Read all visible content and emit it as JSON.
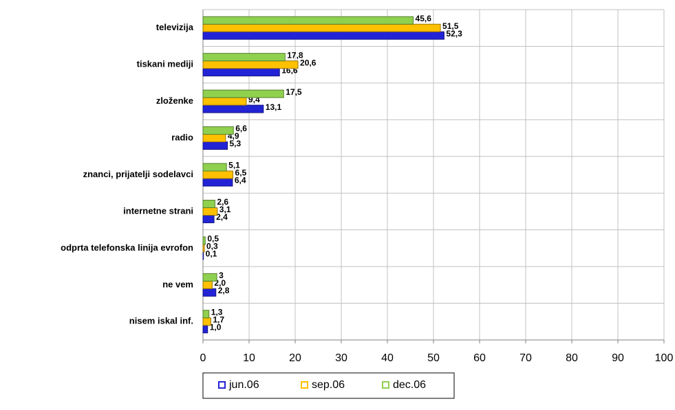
{
  "chart_data": {
    "type": "bar",
    "orientation": "horizontal",
    "categories": [
      "televizija",
      "tiskani mediji",
      "zloženke",
      "radio",
      "znanci, prijatelji sodelavci",
      "internetne strani",
      "odprta telefonska linija evrofon",
      "ne vem",
      "nisem iskal inf."
    ],
    "series": [
      {
        "name": "jun.06",
        "color": "#2323d6",
        "values": [
          52.3,
          16.6,
          13.1,
          5.3,
          6.4,
          2.4,
          0.1,
          2.8,
          1.0
        ],
        "value_labels": [
          "52,3",
          "16,6",
          "13,1",
          "5,3",
          "6,4",
          "2,4",
          "0,1",
          "2,8",
          "1,0"
        ]
      },
      {
        "name": "sep.06",
        "color": "#ffc000",
        "values": [
          51.5,
          20.6,
          9.4,
          4.9,
          6.5,
          3.1,
          0.3,
          2.0,
          1.7
        ],
        "value_labels": [
          "51,5",
          "20,6",
          "9,4",
          "4,9",
          "6,5",
          "3,1",
          "0,3",
          "2,0",
          "1,7"
        ]
      },
      {
        "name": "dec.06",
        "color": "#8fd14f",
        "values": [
          45.6,
          17.8,
          17.5,
          6.6,
          5.1,
          2.6,
          0.5,
          3,
          1.3
        ],
        "value_labels": [
          "45,6",
          "17,8",
          "17,5",
          "6,6",
          "5,1",
          "2,6",
          "0,5",
          "3",
          "1,3"
        ]
      }
    ],
    "xlim": [
      0,
      100
    ],
    "xticks": [
      0,
      10,
      20,
      30,
      40,
      50,
      60,
      70,
      80,
      90,
      100
    ],
    "grid": true,
    "legend": "bottom"
  }
}
